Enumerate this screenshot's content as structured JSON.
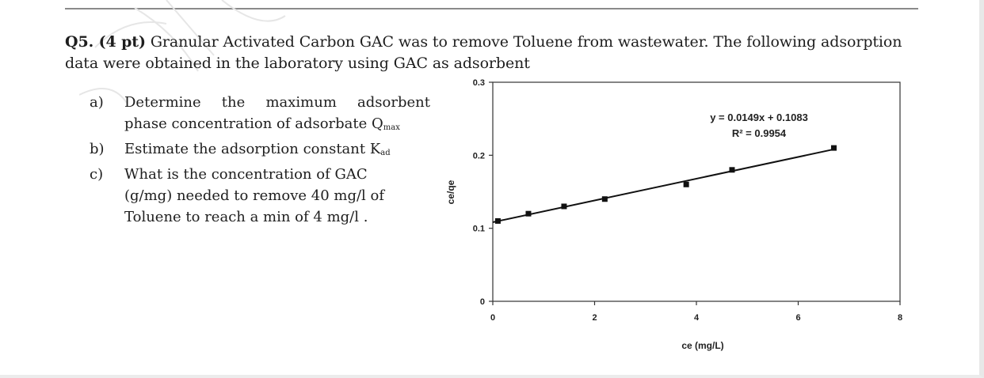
{
  "question": {
    "number": "Q5. (4 pt)",
    "text": " Granular Activated Carbon GAC was to remove Toluene from wastewater. The following adsorption data were obtained in the laboratory using GAC as adsorbent"
  },
  "parts": [
    {
      "marker": "a)",
      "line1": "Determine the maximum adsorbent",
      "line2": "phase concentration of adsorbate Q",
      "sub": "max"
    },
    {
      "marker": "b)",
      "line1": "Estimate the adsorption constant K",
      "sub": "ad"
    },
    {
      "marker": "c)",
      "line1": "What is the concentration of GAC",
      "line2": "(g/mg) needed to remove 40 mg/l of",
      "line3": "Toluene to reach a min of 4 mg/l ."
    }
  ],
  "chart_data": {
    "type": "scatter",
    "xlabel": "ce (mg/L)",
    "ylabel": "ce/qe",
    "xlim": [
      0,
      8
    ],
    "ylim": [
      0,
      0.3
    ],
    "x_ticks": [
      "0",
      "2",
      "4",
      "6",
      "8"
    ],
    "y_ticks": [
      "0",
      "0.1",
      "0.2",
      "0.3"
    ],
    "grid": false,
    "series": [
      {
        "x": [
          0.1,
          0.7,
          1.4,
          2.2,
          3.8,
          4.7,
          6.7
        ],
        "y": [
          0.11,
          0.12,
          0.13,
          0.14,
          0.16,
          0.18,
          0.21
        ],
        "marker": "square",
        "color": "#111111"
      }
    ],
    "trendline": {
      "slope": 0.0149,
      "intercept": 0.1083,
      "x_range": [
        0,
        6.7
      ],
      "color": "#111111"
    },
    "annotations": [
      "y = 0.0149x + 0.1083",
      "R² = 0.9954"
    ]
  }
}
